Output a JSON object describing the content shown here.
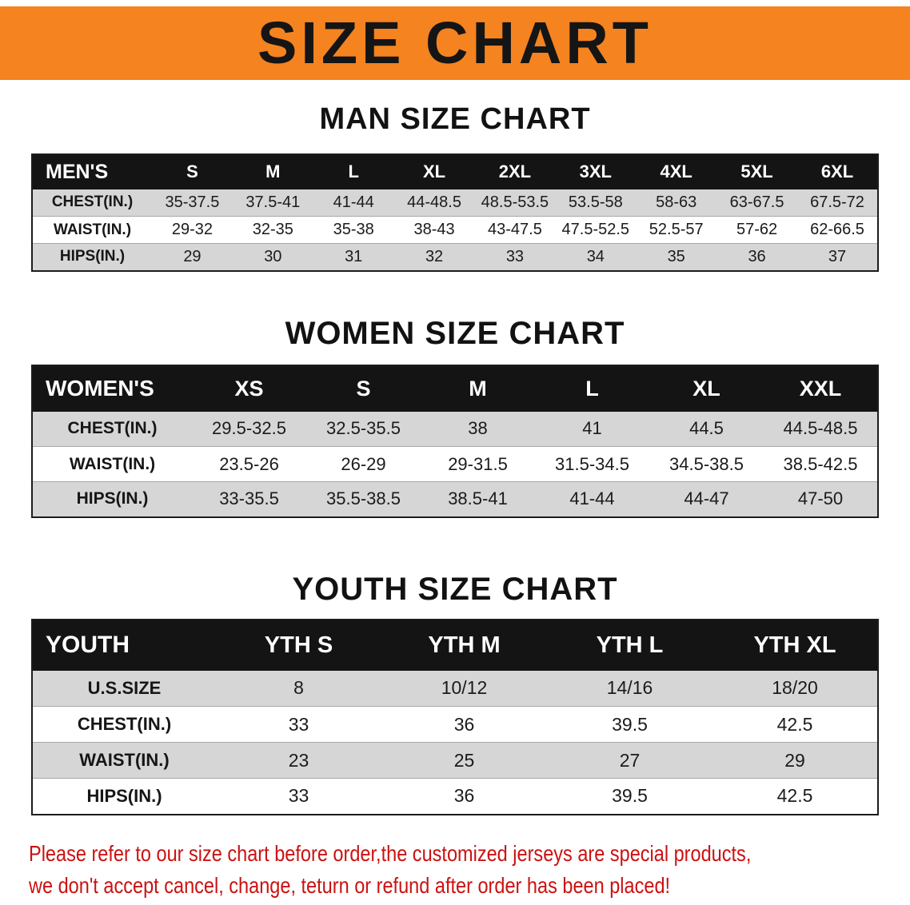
{
  "banner": {
    "title": "SIZE CHART",
    "bg_color": "#f5831f",
    "text_color": "#151515"
  },
  "colors": {
    "table_header_bg": "#141414",
    "table_header_text": "#ffffff",
    "row_shade": "#d6d6d6"
  },
  "sections": [
    {
      "heading": "MAN SIZE CHART",
      "table": {
        "header": [
          "MEN'S",
          "S",
          "M",
          "L",
          "XL",
          "2XL",
          "3XL",
          "4XL",
          "5XL",
          "6XL"
        ],
        "rows": [
          [
            "CHEST(IN.)",
            "35-37.5",
            "37.5-41",
            "41-44",
            "44-48.5",
            "48.5-53.5",
            "53.5-58",
            "58-63",
            "63-67.5",
            "67.5-72"
          ],
          [
            "WAIST(IN.)",
            "29-32",
            "32-35",
            "35-38",
            "38-43",
            "43-47.5",
            "47.5-52.5",
            "52.5-57",
            "57-62",
            "62-66.5"
          ],
          [
            "HIPS(IN.)",
            "29",
            "30",
            "31",
            "32",
            "33",
            "34",
            "35",
            "36",
            "37"
          ]
        ]
      }
    },
    {
      "heading": "WOMEN SIZE CHART",
      "table": {
        "header": [
          "WOMEN'S",
          "XS",
          "S",
          "M",
          "L",
          "XL",
          "XXL"
        ],
        "rows": [
          [
            "CHEST(IN.)",
            "29.5-32.5",
            "32.5-35.5",
            "38",
            "41",
            "44.5",
            "44.5-48.5"
          ],
          [
            "WAIST(IN.)",
            "23.5-26",
            "26-29",
            "29-31.5",
            "31.5-34.5",
            "34.5-38.5",
            "38.5-42.5"
          ],
          [
            "HIPS(IN.)",
            "33-35.5",
            "35.5-38.5",
            "38.5-41",
            "41-44",
            "44-47",
            "47-50"
          ]
        ]
      }
    },
    {
      "heading": "YOUTH SIZE CHART",
      "table": {
        "header": [
          "YOUTH",
          "YTH S",
          "YTH M",
          "YTH L",
          "YTH XL"
        ],
        "rows": [
          [
            "U.S.SIZE",
            "8",
            "10/12",
            "14/16",
            "18/20"
          ],
          [
            "CHEST(IN.)",
            "33",
            "36",
            "39.5",
            "42.5"
          ],
          [
            "WAIST(IN.)",
            "23",
            "25",
            "27",
            "29"
          ],
          [
            "HIPS(IN.)",
            "33",
            "36",
            "39.5",
            "42.5"
          ]
        ]
      }
    }
  ],
  "disclaimer": {
    "line1": "Please refer to our size chart before order,the customized jerseys are special products,",
    "line2": "we don't accept cancel, change, teturn or refund after order has been placed!",
    "color": "#cc1111"
  }
}
